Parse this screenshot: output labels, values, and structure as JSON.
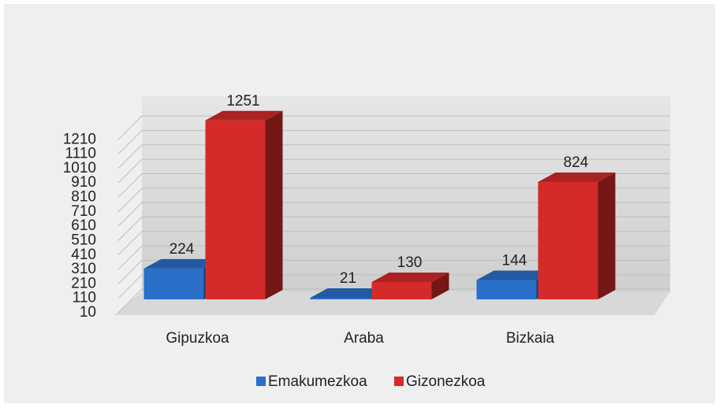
{
  "chart_data": {
    "type": "bar3d",
    "categories": [
      "Gipuzkoa",
      "Araba",
      "Bizkaia"
    ],
    "series": [
      {
        "name": "Emakumezkoa",
        "color": "#2a6fc9",
        "values": [
          224,
          21,
          144
        ]
      },
      {
        "name": "Gizonezkoa",
        "color": "#d42a2a",
        "values": [
          1251,
          130,
          824
        ]
      }
    ],
    "ylim": [
      10,
      1310
    ],
    "yticks": [
      10,
      110,
      210,
      310,
      410,
      510,
      610,
      710,
      810,
      910,
      1010,
      1110,
      1210
    ],
    "grid": true,
    "legend": "bottom"
  }
}
